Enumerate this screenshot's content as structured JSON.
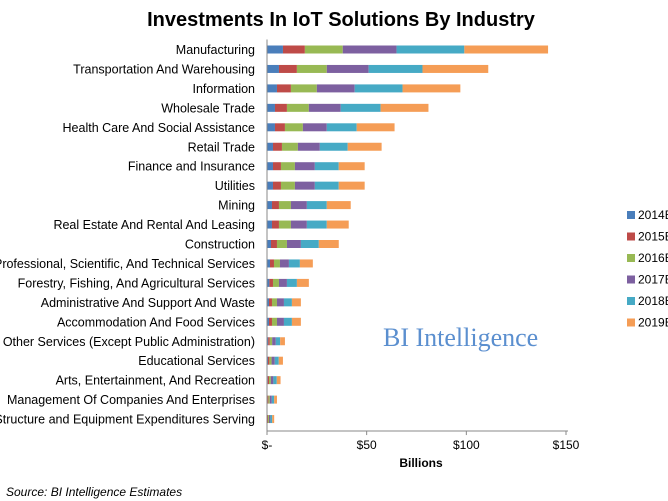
{
  "chart_data": {
    "type": "bar",
    "orientation": "horizontal",
    "stacked": true,
    "title": "Investments In IoT Solutions By Industry",
    "xlabel": "Billions",
    "ylabel": "",
    "xlim": [
      0,
      150
    ],
    "x_ticks": [
      {
        "value": 0,
        "label": "$-"
      },
      {
        "value": 50,
        "label": "$50"
      },
      {
        "value": 100,
        "label": "$100"
      },
      {
        "value": 150,
        "label": "$150"
      }
    ],
    "grid": false,
    "legend_position": "right",
    "categories": [
      "Manufacturing",
      "Transportation And Warehousing",
      "Information",
      "Wholesale Trade",
      "Health Care And Social Assistance",
      "Retail Trade",
      "Finance and Insurance",
      "Utilities",
      "Mining",
      "Real Estate And Rental And Leasing",
      "Construction",
      "Professional, Scientific, And Technical Services",
      "Forestry, Fishing, And Agricultural Services",
      "Administrative And Support And Waste",
      "Accommodation And Food Services",
      "Other Services (Except Public Administration)",
      "Educational Services",
      "Arts, Entertainment, And Recreation",
      "Management Of Companies And Enterprises",
      "Structure and Equipment Expenditures Serving"
    ],
    "series": [
      {
        "name": "2014E",
        "color": "#4a7ebb",
        "values": [
          8,
          6,
          5,
          4,
          4,
          3,
          3,
          3,
          2.5,
          2.5,
          2,
          1.5,
          1.2,
          1,
          1,
          0.6,
          0.5,
          0.4,
          0.3,
          0.2
        ]
      },
      {
        "name": "2015E",
        "color": "#be4b48",
        "values": [
          11,
          9,
          7,
          6,
          5,
          4.5,
          4,
          4,
          3.5,
          3.5,
          3,
          2,
          1.8,
          1.5,
          1.5,
          0.8,
          0.7,
          0.6,
          0.4,
          0.3
        ]
      },
      {
        "name": "2016E",
        "color": "#98b954",
        "values": [
          19,
          15,
          13,
          11,
          9,
          8,
          7,
          7,
          6,
          6,
          5,
          3,
          3,
          2.5,
          2.5,
          1.2,
          1.1,
          0.9,
          0.7,
          0.5
        ]
      },
      {
        "name": "2017E",
        "color": "#7d60a0",
        "values": [
          27,
          21,
          19,
          16,
          12,
          11,
          10,
          10,
          8,
          8,
          7,
          4.5,
          4,
          3.5,
          3.5,
          1.8,
          1.6,
          1.3,
          1,
          0.7
        ]
      },
      {
        "name": "2018E",
        "color": "#46aac5",
        "values": [
          34,
          27,
          24,
          20,
          15,
          14,
          12,
          12,
          10,
          10,
          9,
          5.5,
          5,
          4,
          4,
          2.2,
          2,
          1.7,
          1.2,
          0.9
        ]
      },
      {
        "name": "2019E",
        "color": "#f59d56",
        "values": [
          42,
          33,
          29,
          24,
          19,
          17,
          13,
          13,
          12,
          11,
          10,
          6.5,
          6,
          4.5,
          4.5,
          2.4,
          2.1,
          1.9,
          1.4,
          1
        ]
      }
    ]
  },
  "watermark": "BI Intelligence",
  "source": "Source: BI Intelligence Estimates"
}
